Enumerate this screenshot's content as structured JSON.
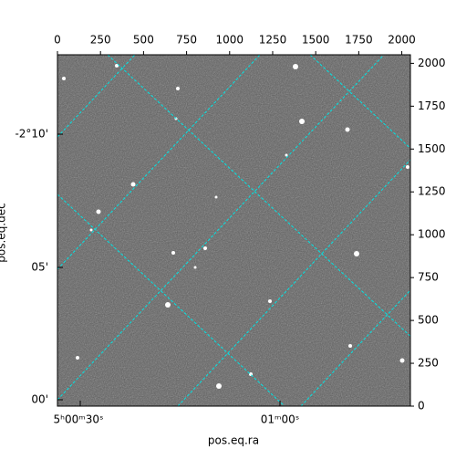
{
  "chart_data": {
    "type": "image",
    "xlabel": "pos.eq.ra",
    "ylabel": "pos.eq.dec",
    "xlim": [
      0,
      2050
    ],
    "ylim": [
      0,
      2050
    ],
    "xticks": [
      0,
      250,
      500,
      750,
      1000,
      1250,
      1500,
      1750,
      2000
    ],
    "yticks": [
      0,
      250,
      500,
      750,
      1000,
      1250,
      1500,
      1750,
      2000
    ],
    "ra_tick_labels": [
      "5ʰ00ᵐ30ˢ",
      "01ᵐ00ˢ"
    ],
    "dec_tick_labels": [
      "-2°10'",
      "05'",
      "00'"
    ],
    "grid_color": "#00e5e5"
  }
}
